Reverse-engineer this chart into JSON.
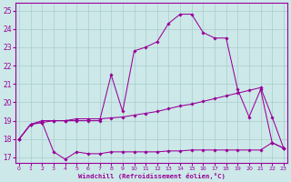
{
  "xlabel": "Windchill (Refroidissement éolien,°C)",
  "background_color": "#cce8e8",
  "grid_color": "#aacccc",
  "line_color": "#990099",
  "xticks": [
    0,
    1,
    2,
    3,
    4,
    5,
    6,
    7,
    8,
    9,
    10,
    11,
    12,
    13,
    14,
    15,
    16,
    17,
    18,
    19,
    20,
    21,
    22,
    23
  ],
  "yticks": [
    17,
    18,
    19,
    20,
    21,
    22,
    23,
    24,
    25
  ],
  "line_upper_y": [
    18.0,
    18.8,
    18.9,
    19.0,
    19.0,
    19.0,
    19.0,
    19.0,
    21.5,
    19.5,
    22.8,
    23.0,
    23.3,
    24.3,
    24.8,
    24.8,
    23.8,
    23.5,
    23.5,
    20.7,
    19.2,
    20.7,
    17.8,
    17.5
  ],
  "line_mid_y": [
    18.0,
    18.8,
    19.0,
    19.0,
    19.0,
    19.1,
    19.1,
    19.1,
    19.15,
    19.2,
    19.3,
    19.4,
    19.5,
    19.65,
    19.8,
    19.9,
    20.05,
    20.2,
    20.35,
    20.5,
    20.65,
    20.8,
    19.2,
    17.5
  ],
  "line_lower_y": [
    18.0,
    18.8,
    18.9,
    17.3,
    16.9,
    17.3,
    17.2,
    17.2,
    17.3,
    17.3,
    17.3,
    17.3,
    17.3,
    17.35,
    17.35,
    17.4,
    17.4,
    17.4,
    17.4,
    17.4,
    17.4,
    17.4,
    17.8,
    17.5
  ]
}
